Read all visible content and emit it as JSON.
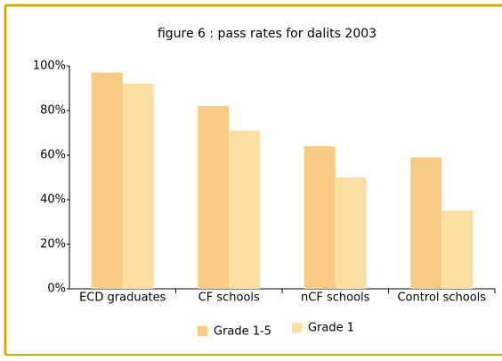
{
  "chart_data": {
    "type": "bar",
    "title": "figure 6 : pass rates for dalits 2003",
    "categories": [
      "ECD graduates",
      "CF schools",
      "nCF schools",
      "Control schools"
    ],
    "series": [
      {
        "name": "Grade 1-5",
        "color": "#f8cb85",
        "values": [
          97,
          82,
          64,
          59
        ]
      },
      {
        "name": "Grade 1",
        "color": "#fbdea2",
        "values": [
          92,
          71,
          50,
          35
        ]
      }
    ],
    "ylim": [
      0,
      100
    ],
    "yticks": [
      {
        "value": 0,
        "label": "0%"
      },
      {
        "value": 20,
        "label": "20%"
      },
      {
        "value": 40,
        "label": "40%"
      },
      {
        "value": 60,
        "label": "60%"
      },
      {
        "value": 80,
        "label": "80%"
      },
      {
        "value": 100,
        "label": "100%"
      }
    ],
    "grid": false,
    "legend": "bottom"
  }
}
